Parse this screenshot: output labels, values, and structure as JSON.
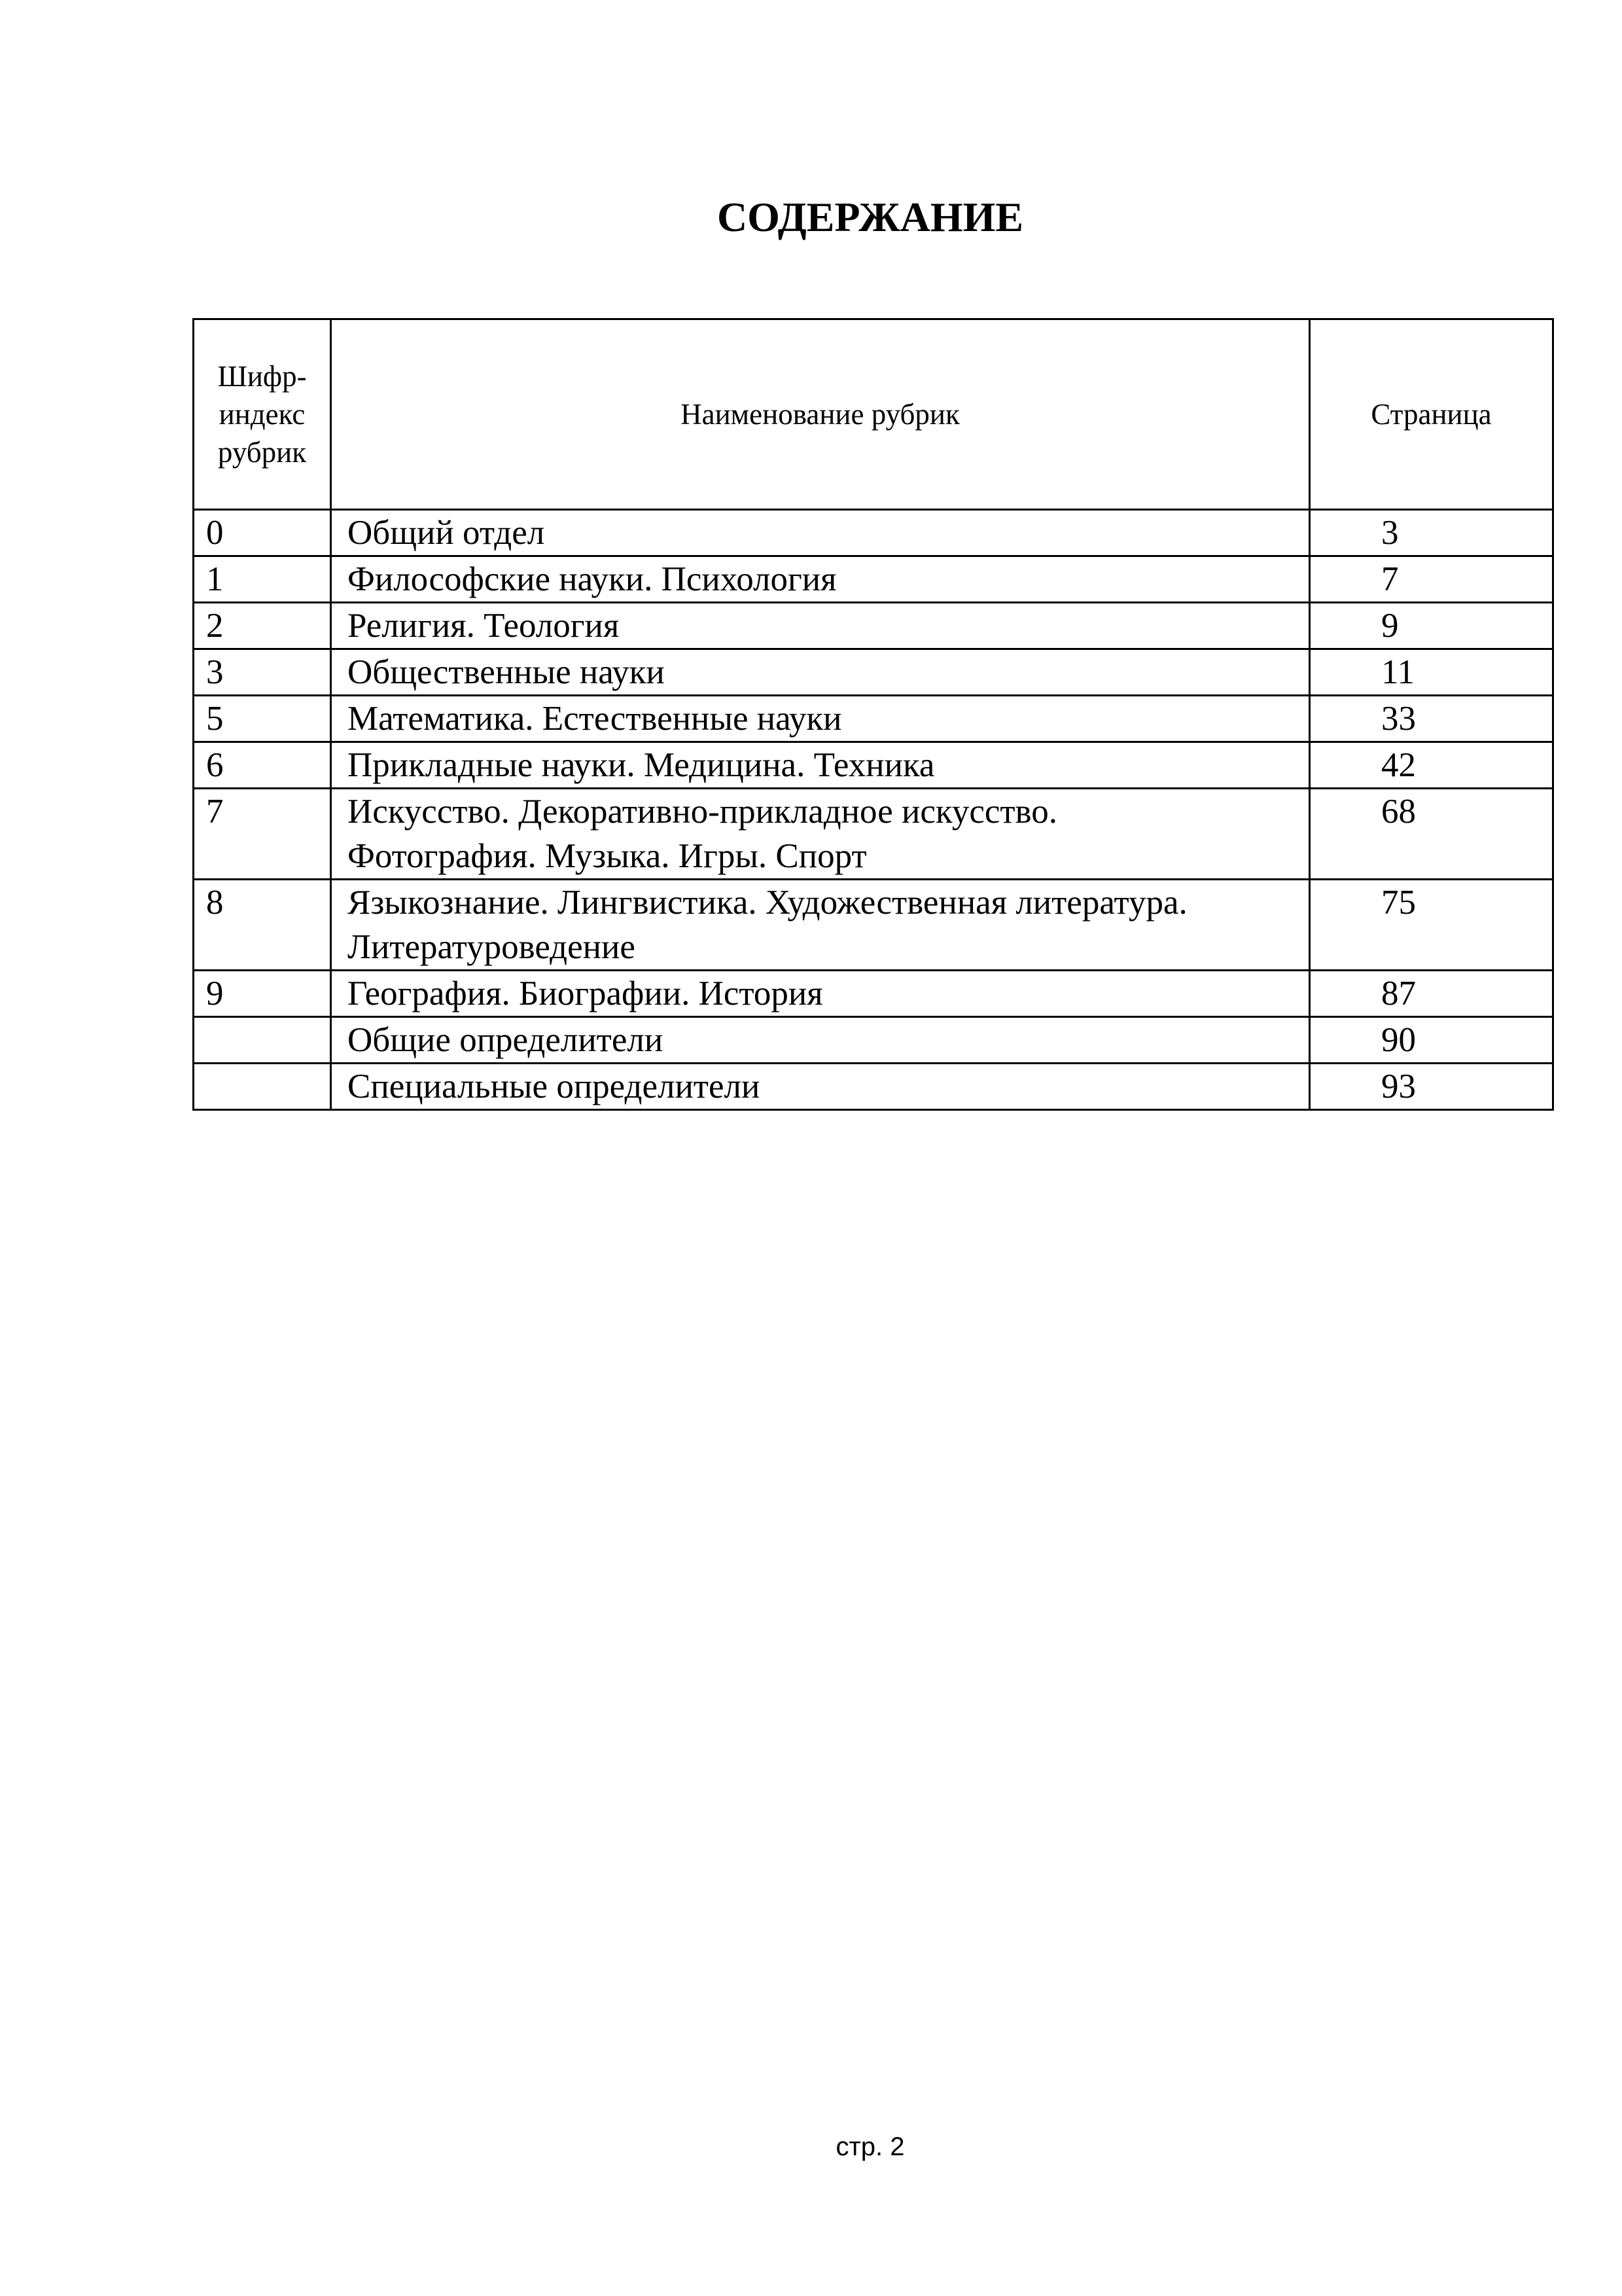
{
  "title": "СОДЕРЖАНИЕ",
  "table": {
    "headers": [
      "Шифр-индекс рубрик",
      "Наименование рубрик",
      "Страница"
    ],
    "rows": [
      {
        "index": "0",
        "lines": [
          "Общий отдел"
        ],
        "page": "3"
      },
      {
        "index": "1",
        "lines": [
          "Философские науки. Психология"
        ],
        "page": "7"
      },
      {
        "index": "2",
        "lines": [
          "Религия. Теология"
        ],
        "page": "9"
      },
      {
        "index": "3",
        "lines": [
          "Общественные науки"
        ],
        "page": "11"
      },
      {
        "index": "5",
        "lines": [
          "Математика. Естественные науки"
        ],
        "page": "33"
      },
      {
        "index": "6",
        "lines": [
          "Прикладные науки. Медицина. Техника"
        ],
        "page": "42"
      },
      {
        "index": "7",
        "lines": [
          "Искусство. Декоративно-прикладное искусство.",
          "Фотография. Музыка. Игры. Спорт"
        ],
        "page": "68"
      },
      {
        "index": "8",
        "lines": [
          "Языкознание. Лингвистика. Художественная литература.",
          "Литературоведение"
        ],
        "page": "75"
      },
      {
        "index": "9",
        "lines": [
          "География. Биографии. История"
        ],
        "page": "87"
      },
      {
        "index": "",
        "lines": [
          "Общие определители"
        ],
        "page": "90"
      },
      {
        "index": "",
        "lines": [
          "Специальные определители"
        ],
        "page": "93"
      }
    ]
  },
  "footer": "стр. 2"
}
